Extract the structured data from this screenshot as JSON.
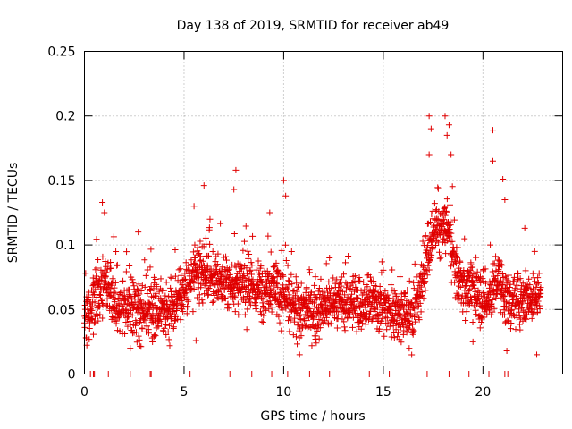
{
  "chart_data": {
    "type": "scatter",
    "title": "Day 138 of 2019, SRMTID for receiver ab49",
    "xlabel": "GPS time / hours",
    "ylabel": "SRMTID / TECUs",
    "xlim": [
      0,
      24
    ],
    "ylim": [
      0,
      0.25
    ],
    "x_ticks": [
      0,
      5,
      10,
      15,
      20
    ],
    "x_tick_labels": [
      "0",
      "5",
      "10",
      "15",
      "20"
    ],
    "y_ticks": [
      0,
      0.05,
      0.1,
      0.15,
      0.2,
      0.25
    ],
    "y_tick_labels": [
      "0",
      "0.05",
      "0.1",
      "0.15",
      "0.2",
      "0.25"
    ],
    "grid": true,
    "marker": "+",
    "color": "#e00000",
    "series": [
      {
        "name": "SRMTID",
        "trend": [
          {
            "x": 0.0,
            "y": 0.045
          },
          {
            "x": 0.5,
            "y": 0.058
          },
          {
            "x": 1.0,
            "y": 0.07
          },
          {
            "x": 1.5,
            "y": 0.055
          },
          {
            "x": 2.5,
            "y": 0.05
          },
          {
            "x": 3.5,
            "y": 0.048
          },
          {
            "x": 4.5,
            "y": 0.055
          },
          {
            "x": 5.5,
            "y": 0.075
          },
          {
            "x": 6.0,
            "y": 0.08
          },
          {
            "x": 6.5,
            "y": 0.072
          },
          {
            "x": 7.5,
            "y": 0.07
          },
          {
            "x": 8.5,
            "y": 0.065
          },
          {
            "x": 9.5,
            "y": 0.07
          },
          {
            "x": 10.5,
            "y": 0.05
          },
          {
            "x": 11.5,
            "y": 0.048
          },
          {
            "x": 12.5,
            "y": 0.055
          },
          {
            "x": 13.5,
            "y": 0.055
          },
          {
            "x": 14.5,
            "y": 0.055
          },
          {
            "x": 15.5,
            "y": 0.05
          },
          {
            "x": 16.5,
            "y": 0.045
          },
          {
            "x": 17.2,
            "y": 0.09
          },
          {
            "x": 17.6,
            "y": 0.11
          },
          {
            "x": 18.2,
            "y": 0.115
          },
          {
            "x": 18.8,
            "y": 0.07
          },
          {
            "x": 19.5,
            "y": 0.065
          },
          {
            "x": 20.2,
            "y": 0.055
          },
          {
            "x": 20.8,
            "y": 0.075
          },
          {
            "x": 21.2,
            "y": 0.055
          },
          {
            "x": 22.0,
            "y": 0.06
          },
          {
            "x": 22.9,
            "y": 0.06
          }
        ],
        "x_range": [
          0.0,
          22.9
        ],
        "count": 2300,
        "spread": 0.018
      }
    ],
    "peaks": [
      {
        "x": 0.9,
        "y": 0.133
      },
      {
        "x": 1.0,
        "y": 0.125
      },
      {
        "x": 2.7,
        "y": 0.11
      },
      {
        "x": 5.5,
        "y": 0.13
      },
      {
        "x": 6.0,
        "y": 0.146
      },
      {
        "x": 6.3,
        "y": 0.12
      },
      {
        "x": 7.6,
        "y": 0.158
      },
      {
        "x": 7.5,
        "y": 0.143
      },
      {
        "x": 9.3,
        "y": 0.125
      },
      {
        "x": 10.0,
        "y": 0.15
      },
      {
        "x": 10.1,
        "y": 0.138
      },
      {
        "x": 17.3,
        "y": 0.2
      },
      {
        "x": 17.4,
        "y": 0.19
      },
      {
        "x": 17.3,
        "y": 0.17
      },
      {
        "x": 18.1,
        "y": 0.2
      },
      {
        "x": 18.3,
        "y": 0.193
      },
      {
        "x": 18.2,
        "y": 0.185
      },
      {
        "x": 18.4,
        "y": 0.17
      },
      {
        "x": 20.5,
        "y": 0.189
      },
      {
        "x": 20.5,
        "y": 0.165
      },
      {
        "x": 21.0,
        "y": 0.151
      },
      {
        "x": 21.1,
        "y": 0.135
      },
      {
        "x": 22.1,
        "y": 0.113
      },
      {
        "x": 22.6,
        "y": 0.095
      }
    ],
    "troughs": [
      {
        "x": 0.1,
        "y": 0.028
      },
      {
        "x": 2.3,
        "y": 0.02
      },
      {
        "x": 3.4,
        "y": 0.028
      },
      {
        "x": 5.6,
        "y": 0.026
      },
      {
        "x": 10.8,
        "y": 0.015
      },
      {
        "x": 11.6,
        "y": 0.027
      },
      {
        "x": 16.3,
        "y": 0.02
      },
      {
        "x": 19.5,
        "y": 0.025
      },
      {
        "x": 21.2,
        "y": 0.018
      },
      {
        "x": 22.7,
        "y": 0.015
      }
    ],
    "zero_points_x": [
      0.3,
      0.45,
      0.5,
      1.2,
      2.3,
      3.3,
      3.35,
      5.3,
      7.3,
      8.4,
      9.4,
      10.2,
      11.3,
      12.3,
      14.3,
      15.3,
      17.2,
      18.3,
      19.3,
      20.3,
      21.1,
      21.25
    ]
  }
}
